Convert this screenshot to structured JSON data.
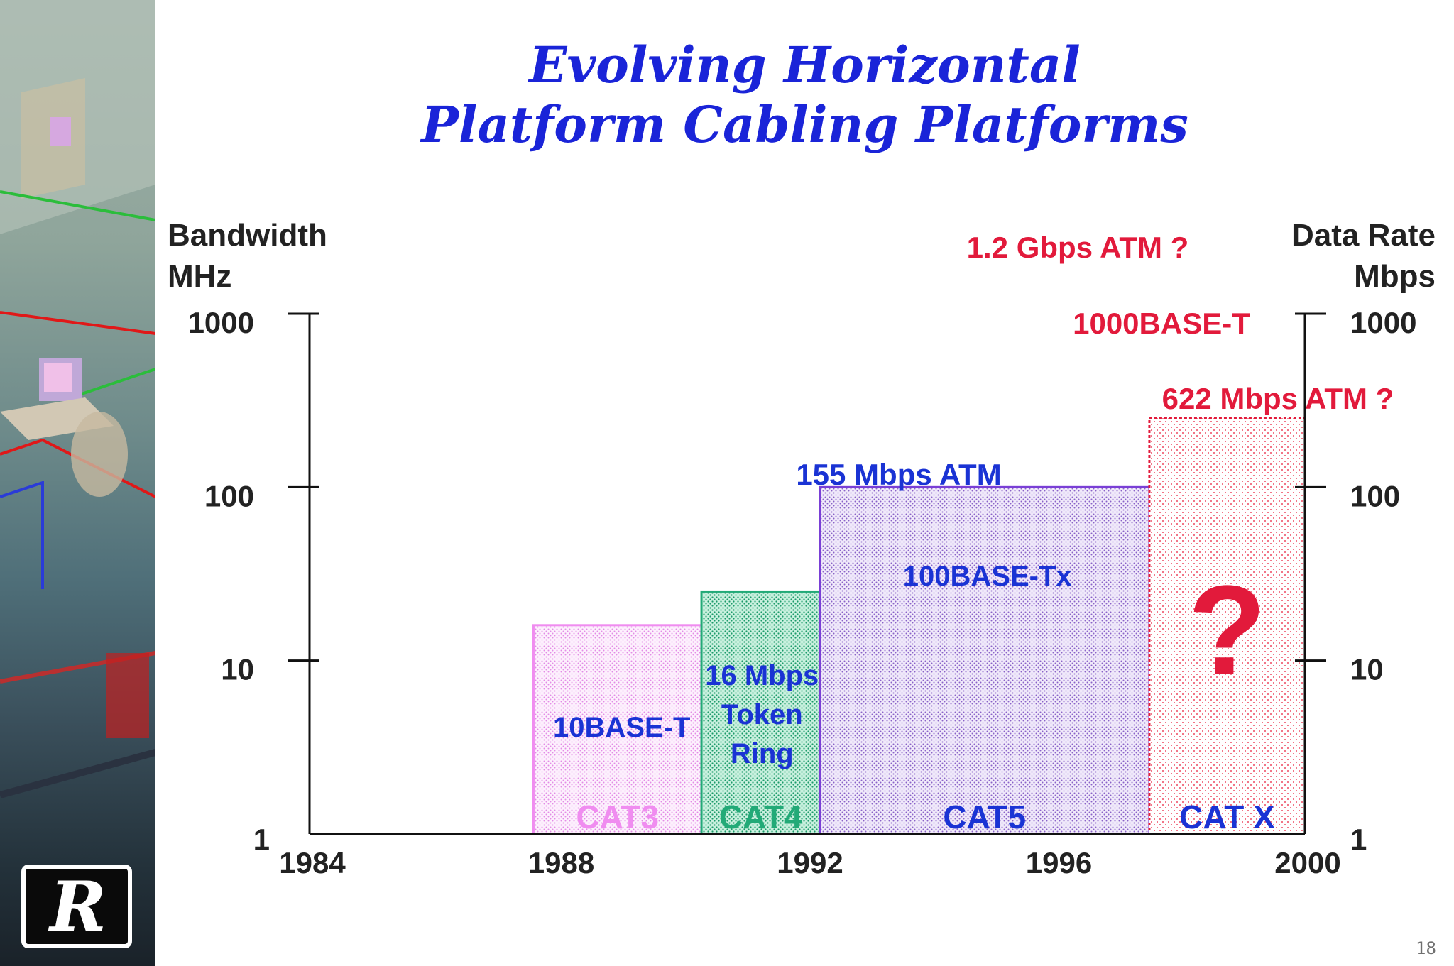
{
  "slide": {
    "title_line1": "Evolving Horizontal",
    "title_line2": "Platform Cabling Platforms",
    "page_number": "18",
    "logo_letter": "R"
  },
  "chart_data": {
    "type": "bar",
    "title": "Evolving Horizontal Platform Cabling Platforms",
    "left_axis_label": [
      "Bandwidth",
      "MHz"
    ],
    "right_axis_label": [
      "Data Rate",
      "Mbps"
    ],
    "y_scale": "log",
    "ylim": [
      1,
      1000
    ],
    "xlim": [
      1984,
      2000
    ],
    "x_ticks": [
      "1984",
      "1988",
      "1992",
      "1996",
      "2000"
    ],
    "y_ticks_left": [
      "1000",
      "100",
      "10",
      "1"
    ],
    "y_ticks_right": [
      "1000",
      "100",
      "10",
      "1"
    ],
    "bars": [
      {
        "category": "CAT3",
        "x_start": 1987.6,
        "x_end": 1990.3,
        "bandwidth_mhz": 16,
        "color": "#f08cf0",
        "fill": "#fbe6fb",
        "application": "10BASE-T"
      },
      {
        "category": "CAT4",
        "x_start": 1990.3,
        "x_end": 1992.2,
        "bandwidth_mhz": 25,
        "color": "#22aa77",
        "fill": "#b6e8d4",
        "application": "16 Mbps Token Ring"
      },
      {
        "category": "CAT5",
        "x_start": 1992.2,
        "x_end": 1997.5,
        "bandwidth_mhz": 100,
        "color": "#7a3fd6",
        "fill": "#e6dcf5",
        "application": "100BASE-Tx"
      },
      {
        "category": "CAT X",
        "x_start": 1997.5,
        "x_end": 2000,
        "bandwidth_mhz": 250,
        "color": "#e21a3b",
        "fill": "#fbe0e4",
        "application": "?"
      }
    ],
    "annotations": [
      {
        "text": "155 Mbps ATM",
        "color": "#1a33d4"
      },
      {
        "text": "1000BASE-T",
        "color": "#e21a3b"
      },
      {
        "text": "622 Mbps ATM ?",
        "color": "#e21a3b"
      },
      {
        "text": "1.2 Gbps ATM ?",
        "color": "#e21a3b"
      }
    ]
  }
}
